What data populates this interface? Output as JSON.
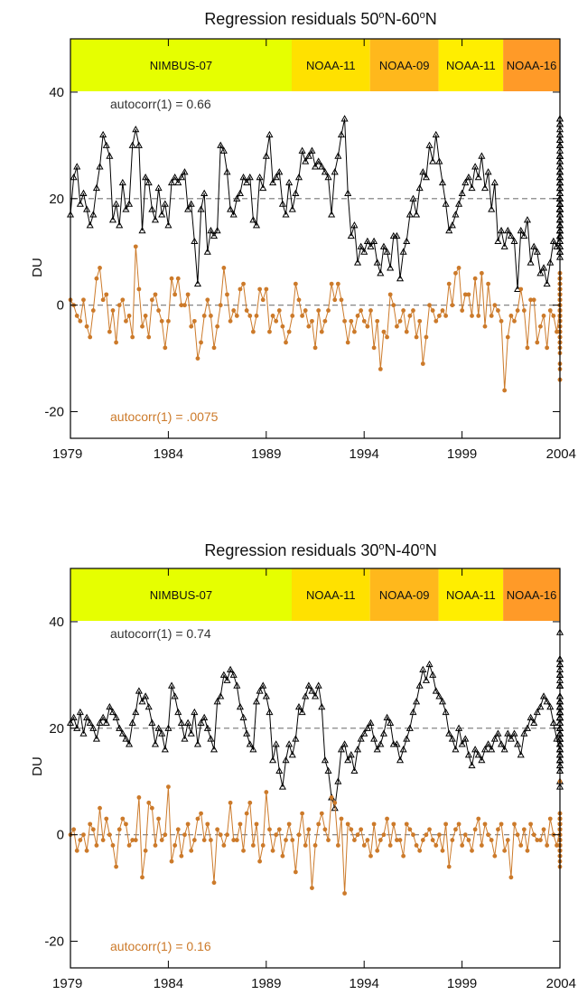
{
  "figure": {
    "description": "Two panels of ozone regression residuals versus time"
  },
  "chart_data": [
    {
      "type": "line",
      "title_main": "Regression residuals 50",
      "title_lat1": "N-60",
      "title_lat2": "N",
      "title_deg": "o",
      "ylabel": "DU",
      "xlim": [
        1979,
        2004
      ],
      "ylim": [
        -25,
        50
      ],
      "xticks": [
        "1979",
        "1984",
        "1989",
        "1994",
        "1999",
        "2004"
      ],
      "yticks": [
        "-20",
        "0",
        "20",
        "40"
      ],
      "satellites": [
        {
          "name": "NIMBUS-07",
          "start": 1979.0,
          "end": 1990.3,
          "color": "#e6ff00"
        },
        {
          "name": "NOAA-11",
          "start": 1990.3,
          "end": 1994.3,
          "color": "#ffe100"
        },
        {
          "name": "NOAA-09",
          "start": 1994.3,
          "end": 1997.8,
          "color": "#ffb81c"
        },
        {
          "name": "NOAA-11",
          "start": 1997.8,
          "end": 2001.1,
          "color": "#ffee00"
        },
        {
          "name": "NOAA-16",
          "start": 2001.1,
          "end": 2004.0,
          "color": "#ff9a28"
        }
      ],
      "offset_black": 20,
      "series": [
        {
          "name": "autocorr(1) =  0.66",
          "label_value": "autocorr(1) =  0.66",
          "color": "#000000",
          "marker": "triangle",
          "x_start": 1979.0,
          "x_step": 0.1667,
          "values": [
            -3,
            4,
            6,
            -1,
            1,
            -2,
            -5,
            -3,
            2,
            6,
            12,
            10,
            8,
            -4,
            -1,
            -5,
            3,
            -2,
            -1,
            10,
            13,
            10,
            -6,
            4,
            3,
            -2,
            -4,
            2,
            -3,
            -1,
            -5,
            3,
            4,
            3,
            4,
            5,
            -2,
            -1,
            -8,
            -16,
            -2,
            1,
            -10,
            -6,
            -7,
            -6,
            10,
            9,
            5,
            -2,
            -3,
            0,
            1,
            4,
            3,
            4,
            -4,
            -5,
            4,
            2,
            8,
            12,
            3,
            4,
            5,
            -1,
            -3,
            3,
            -2,
            1,
            4,
            9,
            7,
            8,
            9,
            6,
            7,
            6,
            5,
            4,
            -3,
            5,
            8,
            12,
            15,
            1,
            -7,
            -5,
            -12,
            -9,
            -10,
            -8,
            -9,
            -8,
            -12,
            -14,
            -9,
            -10,
            -13,
            -7,
            -7,
            -15,
            -10,
            -8,
            -3,
            0,
            -3,
            2,
            5,
            4,
            10,
            7,
            12,
            7,
            3,
            -1,
            -6,
            -5,
            -3,
            -1,
            1,
            3,
            4,
            2,
            6,
            4,
            8,
            2,
            5,
            -2,
            3,
            -8,
            -6,
            -9,
            -6,
            -7,
            -8,
            -17,
            -6,
            -7,
            -4,
            -12,
            -9,
            -10,
            -14,
            -13,
            -16,
            -12,
            -8,
            -9,
            -6,
            -4,
            -2,
            -7,
            -3,
            -2,
            0,
            1,
            -5,
            0,
            4,
            -1,
            3,
            -4,
            -2,
            -7,
            -4,
            -5,
            2,
            3,
            -4,
            -6,
            0,
            3,
            -2,
            -6,
            -1,
            -4,
            -6,
            -3,
            2,
            -2,
            -10,
            -2,
            5,
            -5,
            -8,
            -3,
            -1,
            -5,
            -2,
            -1,
            -7,
            -9,
            -6,
            -1,
            0,
            -2,
            -6,
            -9,
            -2,
            0,
            5,
            -2,
            0,
            1,
            -3,
            10,
            15,
            5,
            5,
            3,
            -2,
            7,
            12,
            4,
            8,
            -1,
            6,
            3,
            6,
            -3,
            -4,
            1,
            -2,
            -5,
            -11,
            -6,
            -2,
            -3,
            -8,
            -5,
            -4,
            -7,
            -10,
            -3,
            0,
            2,
            4,
            6,
            8,
            5,
            10,
            11,
            8,
            7,
            13,
            15,
            14,
            11,
            10,
            12,
            10,
            8,
            11,
            14,
            9
          ]
        },
        {
          "name": "autocorr(1) = .0075",
          "label_value": "autocorr(1) = .0075",
          "color": "#cc7a2a",
          "marker": "circle",
          "x_start": 1979.0,
          "x_step": 0.1667,
          "values": [
            1,
            0,
            -2,
            -3,
            1,
            -4,
            -6,
            -1,
            5,
            7,
            1,
            2,
            -5,
            -1,
            -7,
            0,
            1,
            -3,
            -2,
            -6,
            11,
            3,
            -4,
            -2,
            -6,
            1,
            2,
            -1,
            -3,
            -8,
            -3,
            5,
            2,
            5,
            0,
            0,
            2,
            -4,
            -3,
            -10,
            -7,
            -2,
            1,
            -2,
            -8,
            -4,
            0,
            7,
            2,
            -3,
            -1,
            -2,
            3,
            4,
            -1,
            -2,
            -5,
            -2,
            3,
            1,
            3,
            -5,
            -2,
            -3,
            -1,
            -4,
            -7,
            -5,
            -2,
            4,
            1,
            -2,
            -1,
            -4,
            -3,
            -8,
            -1,
            -5,
            -3,
            -1,
            4,
            1,
            4,
            1,
            -3,
            -7,
            -3,
            -5,
            -2,
            -1,
            -3,
            -4,
            -1,
            -8,
            -3,
            -12,
            -5,
            -6,
            2,
            0,
            -4,
            -3,
            -1,
            -5,
            -2,
            -1,
            -6,
            -3,
            -11,
            -6,
            0,
            -1,
            -3,
            -2,
            -1,
            -2,
            4,
            0,
            6,
            7,
            -1,
            2,
            2,
            -2,
            5,
            -2,
            6,
            -4,
            4,
            -2,
            0,
            -1,
            -3,
            -16,
            -6,
            -2,
            -3,
            -1,
            3,
            -1,
            -8,
            1,
            1,
            -7,
            -4,
            -2,
            -8,
            -1,
            -2,
            -5,
            -1,
            0,
            3,
            -1,
            -6,
            2,
            0,
            -3,
            -1,
            -2,
            -9,
            -2,
            -6,
            -2,
            4,
            -3,
            -2,
            -5,
            -1,
            -7,
            2,
            5,
            -3,
            -1,
            -6,
            -5,
            -4,
            -1,
            0,
            -2,
            -4,
            -14,
            -7,
            -5,
            1,
            5,
            -8,
            2,
            -4,
            -7,
            0,
            0,
            -3,
            -2,
            -1,
            -6,
            3,
            0,
            5,
            0,
            -1,
            -3,
            -14,
            -5,
            -2,
            0,
            1,
            2,
            3,
            -2,
            6,
            0,
            5,
            -2,
            4,
            2,
            -1,
            -5,
            0,
            -2,
            1,
            5,
            -7,
            -2,
            5,
            -4,
            3,
            -2,
            1,
            -1,
            0,
            1,
            -3,
            2,
            -5,
            -12,
            -1,
            -2,
            3,
            -2,
            4,
            1,
            3,
            -3,
            2,
            3,
            5,
            -2,
            3,
            -1,
            -4,
            6,
            1,
            4,
            2,
            -1,
            -3,
            -6,
            -11
          ]
        }
      ]
    },
    {
      "type": "line",
      "title_main": "Regression residuals 30",
      "title_lat1": "N-40",
      "title_lat2": "N",
      "title_deg": "o",
      "ylabel": "DU",
      "xlim": [
        1979,
        2004
      ],
      "ylim": [
        -25,
        50
      ],
      "xticks": [
        "1979",
        "1984",
        "1989",
        "1994",
        "1999",
        "2004"
      ],
      "yticks": [
        "-20",
        "0",
        "20",
        "40"
      ],
      "satellites": [
        {
          "name": "NIMBUS-07",
          "start": 1979.0,
          "end": 1990.3,
          "color": "#e6ff00"
        },
        {
          "name": "NOAA-11",
          "start": 1990.3,
          "end": 1994.3,
          "color": "#ffe100"
        },
        {
          "name": "NOAA-09",
          "start": 1994.3,
          "end": 1997.8,
          "color": "#ffb81c"
        },
        {
          "name": "NOAA-11",
          "start": 1997.8,
          "end": 2001.1,
          "color": "#ffee00"
        },
        {
          "name": "NOAA-16",
          "start": 2001.1,
          "end": 2004.0,
          "color": "#ff9a28"
        }
      ],
      "offset_black": 20,
      "series": [
        {
          "name": "autocorr(1) =  0.74",
          "label_value": "autocorr(1) =  0.74",
          "color": "#000000",
          "marker": "triangle",
          "x_start": 1979.0,
          "x_step": 0.1667,
          "values": [
            1,
            2,
            0,
            3,
            -1,
            2,
            1,
            0,
            -2,
            1,
            2,
            1,
            4,
            3,
            2,
            0,
            -1,
            -2,
            -3,
            1,
            3,
            7,
            5,
            6,
            4,
            1,
            -3,
            0,
            -1,
            -4,
            0,
            8,
            6,
            3,
            1,
            -2,
            1,
            -1,
            3,
            -3,
            1,
            2,
            0,
            -2,
            -4,
            5,
            6,
            10,
            9,
            11,
            10,
            8,
            4,
            2,
            -1,
            -3,
            -4,
            5,
            7,
            8,
            6,
            3,
            -6,
            -3,
            -8,
            -11,
            -6,
            -3,
            -5,
            -2,
            4,
            3,
            6,
            8,
            7,
            6,
            8,
            4,
            -6,
            -8,
            -13,
            -15,
            -10,
            -4,
            -3,
            -6,
            -5,
            -8,
            -4,
            -2,
            -1,
            0,
            1,
            -2,
            -4,
            -3,
            -1,
            2,
            1,
            -3,
            -3,
            -6,
            -4,
            -2,
            0,
            3,
            5,
            8,
            11,
            9,
            12,
            10,
            7,
            6,
            5,
            3,
            -1,
            -2,
            -4,
            0,
            -3,
            -2,
            -5,
            -7,
            -4,
            -5,
            -6,
            -4,
            -3,
            -4,
            -2,
            -1,
            -3,
            -4,
            -1,
            -2,
            -1,
            -3,
            -5,
            -1,
            0,
            2,
            1,
            3,
            4,
            6,
            5,
            4,
            1,
            -2,
            -4,
            -6,
            -3,
            -5,
            -4,
            -7,
            -3,
            -2,
            0,
            4,
            6,
            12,
            10,
            13,
            11,
            8,
            5,
            3,
            1,
            -1,
            -3,
            -4,
            -2,
            -5,
            -7,
            -6,
            -3,
            -1,
            -2,
            -4,
            -6,
            -1,
            2,
            1,
            0,
            2,
            4,
            1,
            3,
            0,
            2,
            6,
            8,
            2,
            -3,
            -5,
            -2,
            -4,
            -6,
            -3,
            -1,
            2,
            4,
            3,
            1,
            -2,
            -5,
            -8,
            -10,
            -11,
            -8,
            -3,
            1,
            2,
            4,
            3,
            2,
            0,
            -1,
            2,
            3,
            5,
            3,
            5,
            6,
            8,
            10,
            12,
            9,
            13,
            18,
            10,
            8,
            5,
            4,
            5,
            3,
            4
          ]
        },
        {
          "name": "autocorr(1) =  0.16",
          "label_value": "autocorr(1) =  0.16",
          "color": "#cc7a2a",
          "marker": "circle",
          "x_start": 1979.0,
          "x_step": 0.1667,
          "values": [
            0,
            1,
            -3,
            -1,
            0,
            -3,
            2,
            1,
            -2,
            5,
            -1,
            3,
            0,
            -2,
            -6,
            1,
            3,
            2,
            -2,
            -1,
            -1,
            7,
            -8,
            -3,
            6,
            5,
            -2,
            3,
            -1,
            0,
            9,
            -5,
            -2,
            1,
            -4,
            0,
            2,
            -3,
            -1,
            3,
            4,
            -1,
            2,
            -1,
            -9,
            1,
            0,
            -2,
            0,
            6,
            -1,
            -1,
            2,
            -3,
            4,
            6,
            -2,
            2,
            -5,
            -2,
            8,
            1,
            -3,
            0,
            1,
            -4,
            -1,
            2,
            -1,
            -7,
            0,
            4,
            -2,
            1,
            -10,
            -2,
            2,
            4,
            1,
            -1,
            7,
            6,
            -2,
            3,
            -11,
            2,
            1,
            -1,
            0,
            1,
            -2,
            -1,
            -4,
            2,
            -3,
            -1,
            0,
            3,
            -2,
            2,
            -1,
            -1,
            -4,
            2,
            1,
            0,
            -2,
            -3,
            -1,
            0,
            1,
            -1,
            -2,
            0,
            -3,
            2,
            -6,
            -1,
            1,
            2,
            -2,
            0,
            -1,
            -3,
            1,
            3,
            -2,
            2,
            0,
            -1,
            -4,
            1,
            2,
            -3,
            -1,
            -8,
            2,
            0,
            -2,
            1,
            -3,
            2,
            0,
            -1,
            -1,
            1,
            -2,
            3,
            0,
            -2,
            1,
            -2,
            4,
            -1,
            -3,
            2,
            0,
            -1,
            -1,
            3,
            -2,
            0,
            -3,
            2,
            -1,
            1,
            -4,
            0,
            2,
            -2,
            -1,
            3,
            -2,
            0,
            1,
            -1,
            -3,
            2,
            0,
            -1,
            -6,
            1,
            -2,
            3,
            -2,
            0,
            1,
            -4,
            2,
            -3,
            4,
            -1,
            0,
            -2,
            3,
            -5,
            1,
            0,
            2,
            -1,
            -1,
            3,
            0,
            -2,
            1,
            -3,
            0,
            2,
            1,
            -2,
            0,
            -1,
            3,
            -4,
            2,
            0,
            -1,
            1,
            -2,
            -1,
            2,
            0,
            -3,
            1,
            -1,
            2,
            -2,
            0,
            1,
            -1,
            10,
            3,
            -3,
            0,
            2,
            -1,
            1,
            0,
            -2,
            3,
            -1,
            0,
            2,
            -1,
            1
          ]
        }
      ]
    }
  ]
}
